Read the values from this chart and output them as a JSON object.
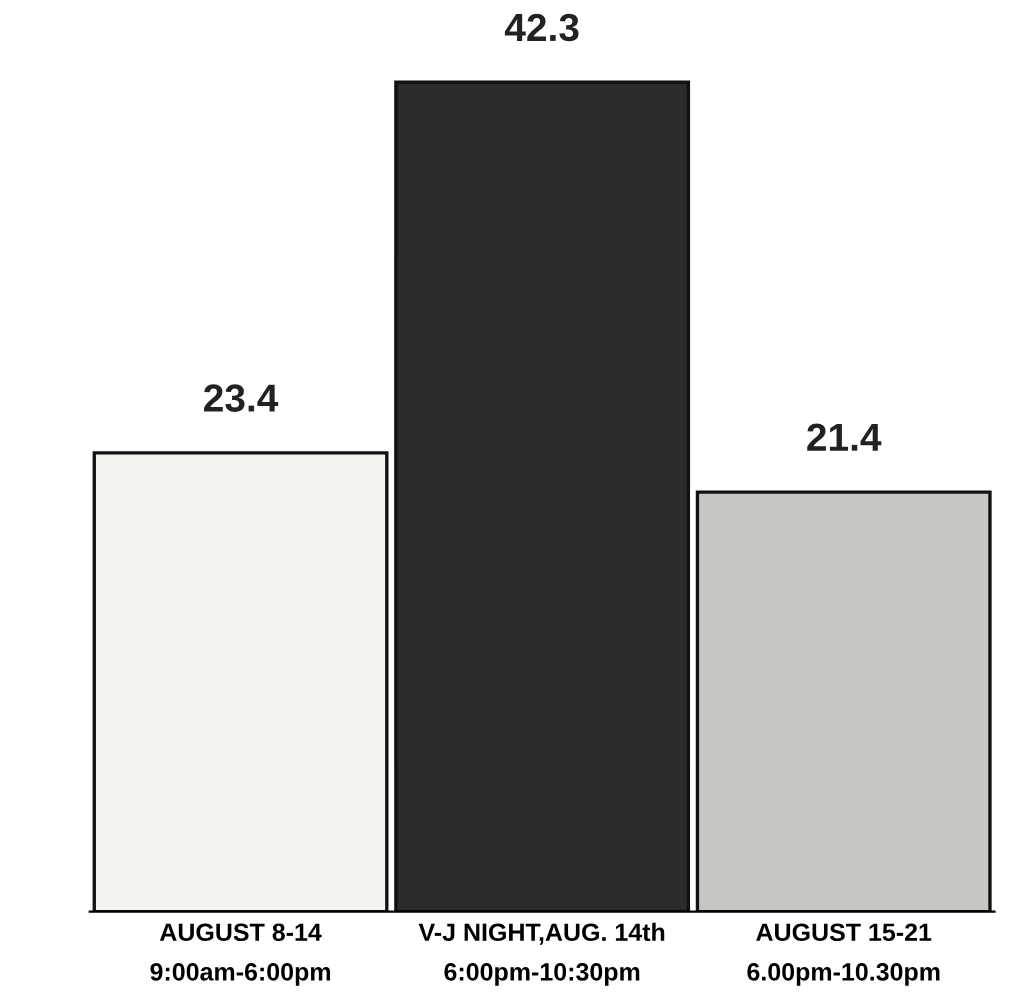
{
  "chart_data": {
    "type": "bar",
    "categories": [
      "AUGUST 8-14\n9:00am-6:00pm",
      "V-J NIGHT,AUG. 14th\n6:00pm-10:30pm",
      "AUGUST 15-21\n6.00pm-10.30pm"
    ],
    "values": [
      23.4,
      42.3,
      21.4
    ],
    "colors": [
      "#f3f3f0",
      "#2b2b2b",
      "#c6c6c3"
    ],
    "data_labels": true,
    "grid": false,
    "legend": false
  }
}
